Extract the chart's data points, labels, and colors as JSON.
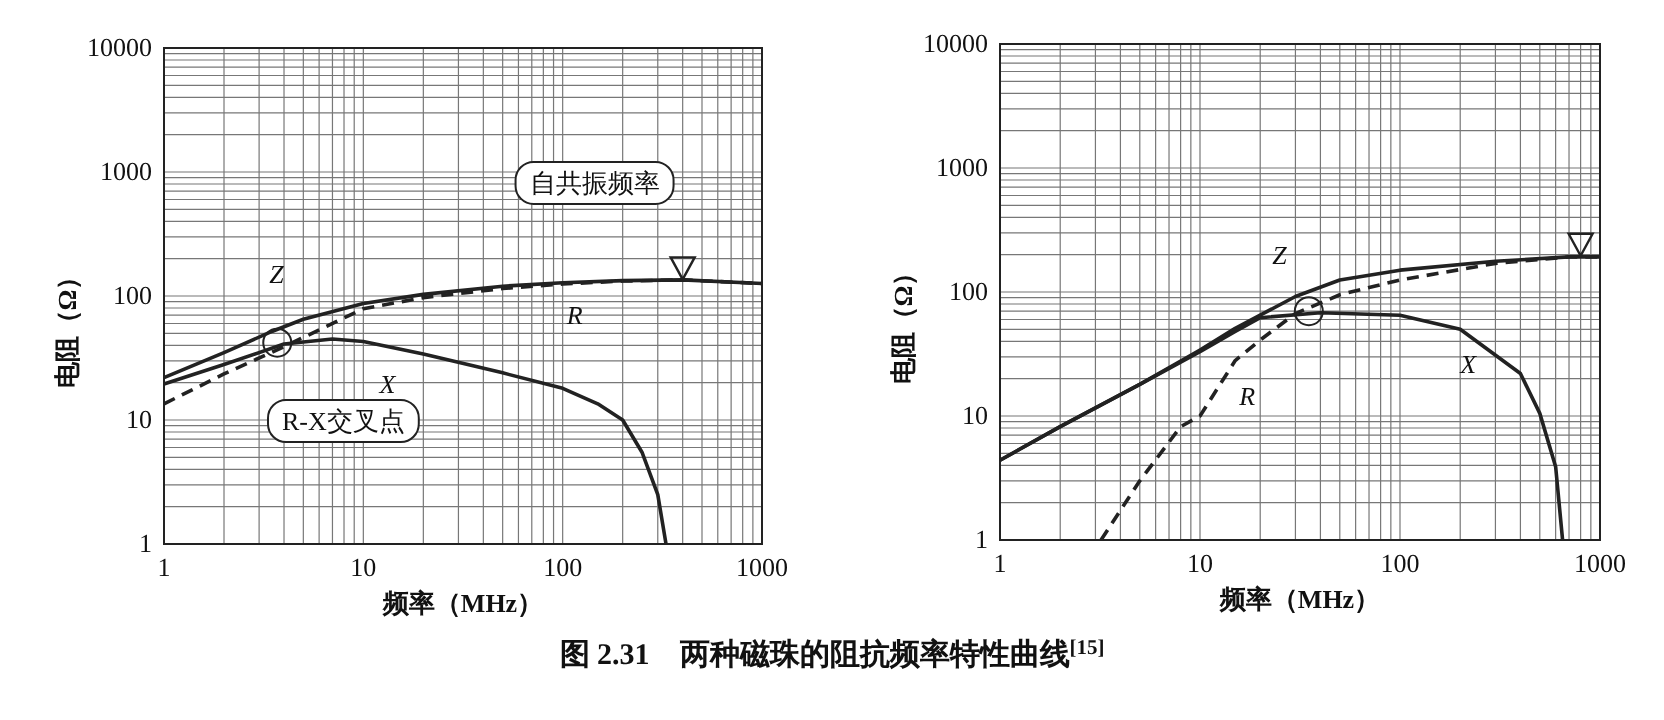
{
  "chart_data": [
    {
      "type": "line",
      "title": "图 2.31　两种磁珠的阻抗频率特性曲线$^{[15]}$",
      "xlabel": "频率（MHz）",
      "ylabel": "电阻（Ω）",
      "log": "xy",
      "grid": true,
      "xlim": [
        1,
        1000
      ],
      "ylim": [
        1,
        10000
      ],
      "xticks": [
        1,
        10,
        100,
        1000
      ],
      "yticks": [
        1,
        10,
        100,
        1000,
        10000
      ],
      "annotations": [
        "自共振频率",
        "R-X交叉点"
      ],
      "series": [
        {
          "name": "Z",
          "color": "#222222",
          "line_style": "solid",
          "x": [
            1,
            2,
            3.5,
            5,
            10,
            20,
            50,
            100,
            200,
            400,
            1000
          ],
          "values": [
            22,
            35,
            52,
            65,
            87,
            103,
            120,
            128,
            133,
            135,
            126
          ]
        },
        {
          "name": "R",
          "color": "#222222",
          "line_style": "dashed",
          "x": [
            1,
            2,
            4,
            10,
            20,
            50,
            100,
            200,
            400,
            1000
          ],
          "values": [
            13.5,
            23.5,
            39,
            79,
            97,
            115,
            125,
            132,
            135,
            126
          ]
        },
        {
          "name": "X",
          "color": "#222222",
          "line_style": "solid",
          "x": [
            1,
            2,
            4,
            7,
            10,
            20,
            50,
            100,
            150,
            200,
            250,
            300,
            330
          ],
          "values": [
            19.5,
            28,
            41,
            45,
            43,
            34,
            24,
            18,
            13.5,
            10,
            5.5,
            2.5,
            1
          ]
        },
        {
          "type": "scatter",
          "marker": "circle",
          "color": "#222222",
          "x": [
            3.7
          ],
          "values": [
            42
          ]
        },
        {
          "type": "scatter",
          "marker": "triangle",
          "color": "#222222",
          "x": [
            400
          ],
          "values": [
            170
          ]
        }
      ]
    },
    {
      "type": "line",
      "xlabel": "频率（MHz）",
      "ylabel": "电阻（Ω）",
      "log": "xy",
      "grid": true,
      "xlim": [
        1,
        1000
      ],
      "ylim": [
        1,
        10000
      ],
      "xticks": [
        1,
        10,
        100,
        1000
      ],
      "yticks": [
        1,
        10,
        100,
        1000,
        10000
      ],
      "series": [
        {
          "name": "Z",
          "color": "#222222",
          "line_style": "solid",
          "x": [
            1,
            2,
            5,
            10,
            15,
            30,
            50,
            100,
            300,
            700,
            1000
          ],
          "values": [
            4.4,
            8.2,
            18,
            34,
            51,
            92,
            125,
            150,
            177,
            192,
            192
          ]
        },
        {
          "name": "R",
          "color": "#222222",
          "line_style": "dashed",
          "x": [
            3.2,
            5,
            8,
            10,
            15,
            20,
            30,
            50,
            100,
            300,
            700,
            1000
          ],
          "values": [
            1,
            3,
            8.2,
            10,
            28,
            41,
            67,
            95,
            125,
            170,
            192,
            192
          ]
        },
        {
          "name": "X",
          "color": "#222222",
          "line_style": "solid",
          "x": [
            1,
            2,
            5,
            10,
            15,
            20,
            40,
            100,
            200,
            400,
            500,
            600,
            650
          ],
          "values": [
            4.4,
            8.2,
            18,
            33,
            48,
            62,
            68,
            65,
            50,
            22,
            10.5,
            3.9,
            1
          ]
        },
        {
          "type": "scatter",
          "marker": "circle",
          "color": "#222222",
          "x": [
            35
          ],
          "values": [
            70
          ]
        },
        {
          "type": "scatter",
          "marker": "triangle",
          "color": "#222222",
          "x": [
            800
          ],
          "values": [
            245
          ]
        }
      ]
    }
  ]
}
